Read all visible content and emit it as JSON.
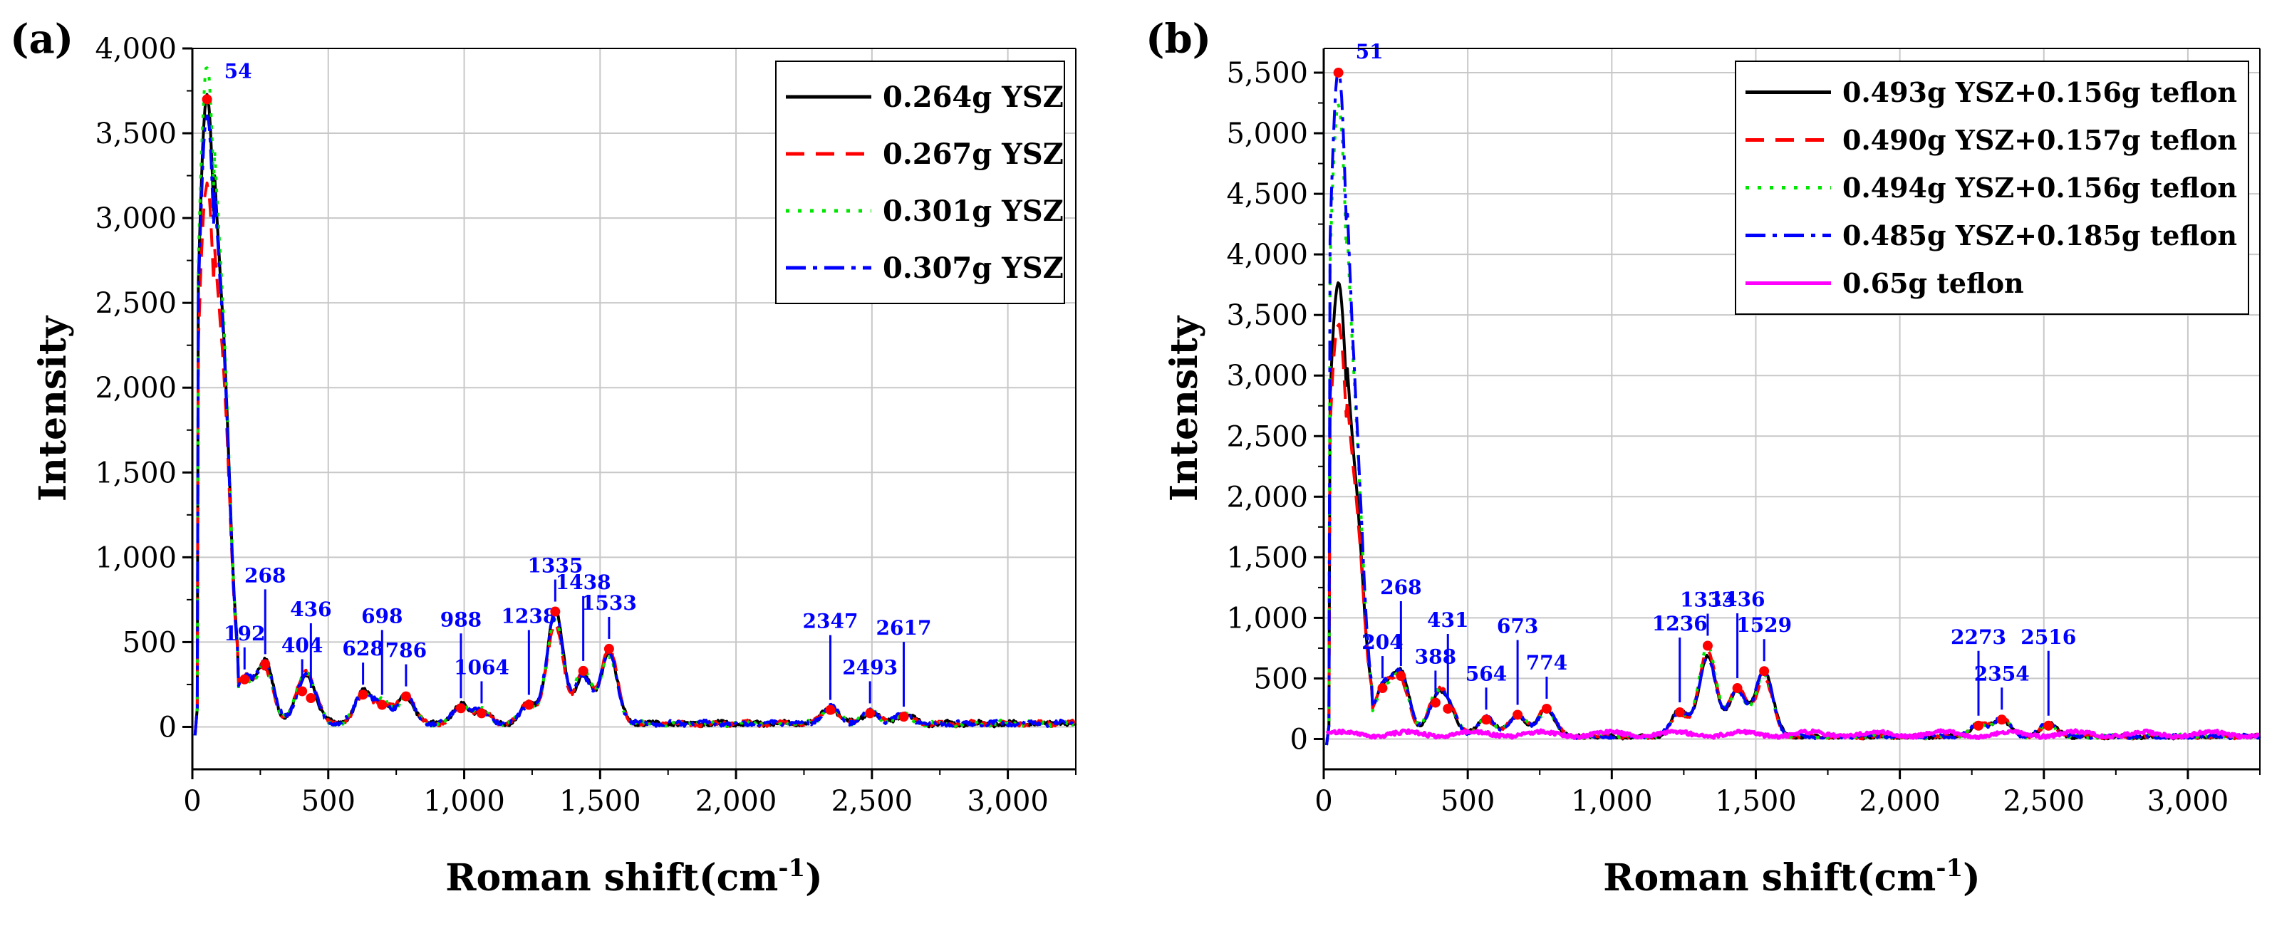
{
  "chart_data": [
    {
      "panel_label": "(a)",
      "type": "line",
      "title": "",
      "xlabel": "Roman shift(cm",
      "xlabel_sup": "-1",
      "xlabel_suffix": ")",
      "ylabel": "Intensity",
      "xlim": [
        0,
        3250
      ],
      "ylim": [
        -250,
        4000
      ],
      "xticks": [
        0,
        500,
        1000,
        1500,
        2000,
        2500,
        3000
      ],
      "yticks": [
        0,
        500,
        1000,
        1500,
        2000,
        2500,
        3000,
        3500,
        4000
      ],
      "xtick_labels": [
        "0",
        "500",
        "1,000",
        "1,500",
        "2,000",
        "2,500",
        "3,000"
      ],
      "ytick_labels": [
        "0",
        "500",
        "1,000",
        "1,500",
        "2,000",
        "2,500",
        "3,000",
        "3,500",
        "4,000"
      ],
      "grid": true,
      "legend_position": "top-right",
      "series": [
        {
          "name": "0.264g YSZ",
          "color": "#000000",
          "dash": "solid",
          "scale": 1.0
        },
        {
          "name": "0.267g YSZ",
          "color": "#ff0000",
          "dash": "dashed",
          "scale": 0.86
        },
        {
          "name": "0.301g YSZ",
          "color": "#00e600",
          "dash": "dotted",
          "scale": 1.05
        },
        {
          "name": "0.307g YSZ",
          "color": "#0000ff",
          "dash": "dashdot",
          "scale": 0.97
        }
      ],
      "peaks": [
        {
          "x": 54,
          "y": 3700,
          "label": "54"
        },
        {
          "x": 192,
          "y": 280,
          "label": "192"
        },
        {
          "x": 268,
          "y": 370,
          "label": "268"
        },
        {
          "x": 404,
          "y": 210,
          "label": "404"
        },
        {
          "x": 436,
          "y": 170,
          "label": "436"
        },
        {
          "x": 628,
          "y": 190,
          "label": "628"
        },
        {
          "x": 698,
          "y": 130,
          "label": "698"
        },
        {
          "x": 786,
          "y": 180,
          "label": "786"
        },
        {
          "x": 988,
          "y": 110,
          "label": "988"
        },
        {
          "x": 1064,
          "y": 80,
          "label": "1064"
        },
        {
          "x": 1238,
          "y": 130,
          "label": "1238"
        },
        {
          "x": 1335,
          "y": 680,
          "label": "1335"
        },
        {
          "x": 1438,
          "y": 330,
          "label": "1438"
        },
        {
          "x": 1533,
          "y": 460,
          "label": "1533"
        },
        {
          "x": 2347,
          "y": 100,
          "label": "2347"
        },
        {
          "x": 2493,
          "y": 80,
          "label": "2493"
        },
        {
          "x": 2617,
          "y": 60,
          "label": "2617"
        }
      ],
      "peak_marker_color": "#ff0000",
      "annotation_color": "#0000ff"
    },
    {
      "panel_label": "(b)",
      "type": "line",
      "title": "",
      "xlabel": "Roman shift(cm",
      "xlabel_sup": "-1",
      "xlabel_suffix": ")",
      "ylabel": "Intensity",
      "xlim": [
        0,
        3250
      ],
      "ylim": [
        -250,
        5700
      ],
      "xticks": [
        0,
        500,
        1000,
        1500,
        2000,
        2500,
        3000
      ],
      "yticks": [
        0,
        500,
        1000,
        1500,
        2000,
        2500,
        3000,
        3500,
        4000,
        4500,
        5000,
        5500
      ],
      "xtick_labels": [
        "0",
        "500",
        "1,000",
        "1,500",
        "2,000",
        "2,500",
        "3,000"
      ],
      "ytick_labels": [
        "0",
        "500",
        "1,000",
        "1,500",
        "2,000",
        "2,500",
        "3,000",
        "3,500",
        "4,000",
        "4,500",
        "5,000",
        "5,500"
      ],
      "grid": true,
      "legend_position": "top-right",
      "series": [
        {
          "name": "0.493g YSZ+0.156g teflon",
          "color": "#000000",
          "dash": "solid",
          "scale": 0.68
        },
        {
          "name": "0.490g YSZ+0.157g teflon",
          "color": "#ff0000",
          "dash": "dashed",
          "scale": 0.62
        },
        {
          "name": "0.494g YSZ+0.156g teflon",
          "color": "#00e600",
          "dash": "dotted",
          "scale": 0.95
        },
        {
          "name": "0.485g YSZ+0.185g teflon",
          "color": "#0000ff",
          "dash": "dashdot",
          "scale": 1.0
        },
        {
          "name": "0.65g teflon",
          "color": "#ff00ff",
          "dash": "solid",
          "scale": 0.0
        }
      ],
      "peaks": [
        {
          "x": 51,
          "y": 5500,
          "label": "51"
        },
        {
          "x": 204,
          "y": 420,
          "label": "204"
        },
        {
          "x": 268,
          "y": 520,
          "label": "268"
        },
        {
          "x": 388,
          "y": 300,
          "label": "388"
        },
        {
          "x": 431,
          "y": 250,
          "label": "431"
        },
        {
          "x": 564,
          "y": 160,
          "label": "564"
        },
        {
          "x": 673,
          "y": 200,
          "label": "673"
        },
        {
          "x": 774,
          "y": 250,
          "label": "774"
        },
        {
          "x": 1236,
          "y": 220,
          "label": "1236"
        },
        {
          "x": 1333,
          "y": 770,
          "label": "1333"
        },
        {
          "x": 1436,
          "y": 420,
          "label": "1436"
        },
        {
          "x": 1529,
          "y": 560,
          "label": "1529"
        },
        {
          "x": 2273,
          "y": 110,
          "label": "2273"
        },
        {
          "x": 2354,
          "y": 160,
          "label": "2354"
        },
        {
          "x": 2516,
          "y": 110,
          "label": "2516"
        }
      ],
      "peak_marker_color": "#ff0000",
      "annotation_color": "#0000ff"
    }
  ]
}
